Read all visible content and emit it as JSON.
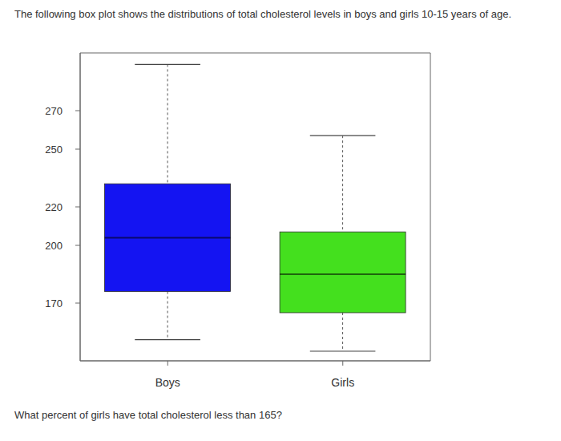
{
  "chart_data": {
    "type": "box",
    "title": "The following box plot shows the distributions of total cholesterol levels in boys and girls 10-15 years of age.",
    "annotations": [
      "What percent of girls have total cholesterol less than 165?"
    ],
    "categories": [
      "Boys",
      "Girls"
    ],
    "colors": [
      "#1414f2",
      "#44e01e"
    ],
    "min": [
      151,
      145
    ],
    "q1": [
      176,
      165
    ],
    "median": [
      204,
      185
    ],
    "q3": [
      232,
      207
    ],
    "max": [
      294,
      257
    ],
    "ylim": [
      140,
      300
    ],
    "yticks": [
      170,
      200,
      220,
      250,
      270
    ],
    "grid": false
  }
}
